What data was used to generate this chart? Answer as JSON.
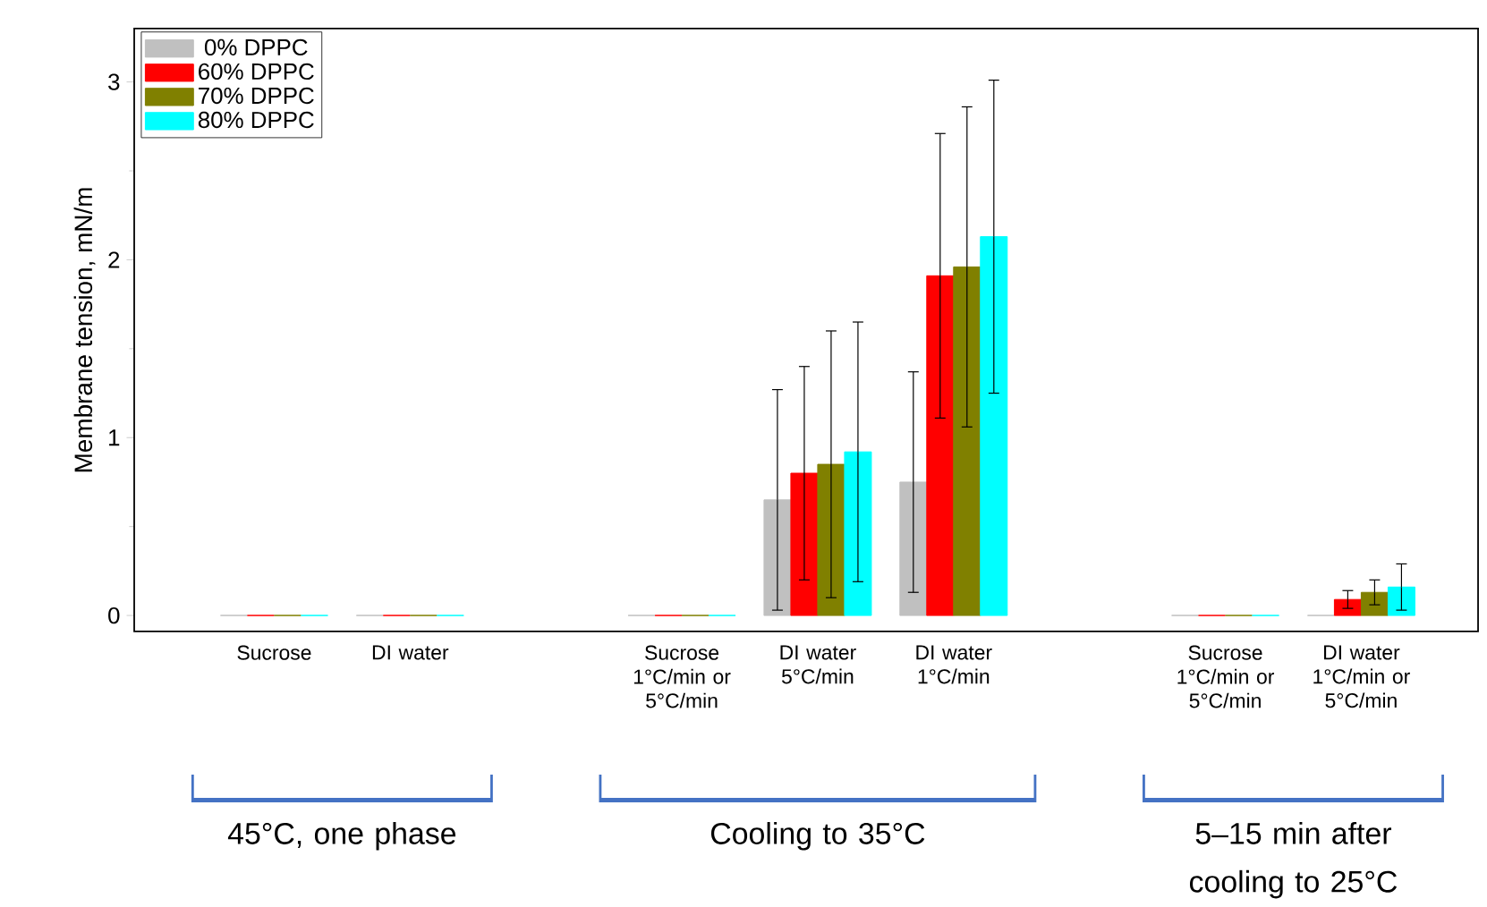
{
  "chart_data": {
    "type": "bar",
    "ylabel": "Membrane tension, mN/m",
    "categories": [
      "Sucrose",
      "DI water",
      null,
      "Sucrose 1°C/min or 5°C/min",
      "DI water 5°C/min",
      "DI water 1°C/min",
      null,
      "Sucrose 1°C/min or 5°C/min",
      "DI water 1°C/min or 5°C/min"
    ],
    "series": [
      {
        "name": "0% DPPC",
        "color": "#c0c0c0",
        "values": [
          0,
          0,
          null,
          0,
          0.65,
          0.75,
          null,
          0,
          0
        ],
        "errors": [
          null,
          null,
          null,
          null,
          0.62,
          0.62,
          null,
          null,
          null
        ]
      },
      {
        "name": "60% DPPC",
        "color": "#ff0000",
        "values": [
          0,
          0,
          null,
          0,
          0.8,
          1.91,
          null,
          0,
          0.09
        ],
        "errors": [
          null,
          null,
          null,
          null,
          0.6,
          0.8,
          null,
          null,
          0.05
        ]
      },
      {
        "name": "70% DPPC",
        "color": "#808000",
        "values": [
          0,
          0,
          null,
          0,
          0.85,
          1.96,
          null,
          0,
          0.13
        ],
        "errors": [
          null,
          null,
          null,
          null,
          0.75,
          0.9,
          null,
          null,
          0.07
        ]
      },
      {
        "name": "80% DPPC",
        "color": "#00ffff",
        "values": [
          0,
          0,
          null,
          0,
          0.92,
          2.13,
          null,
          0,
          0.16
        ],
        "errors": [
          null,
          null,
          null,
          null,
          0.73,
          0.88,
          null,
          null,
          0.13
        ]
      }
    ],
    "ylim": [
      -0.09,
      3.3
    ],
    "yticks": [
      0,
      1,
      2,
      3
    ],
    "legend": "top left",
    "grid": false,
    "annotations": [
      "45°C, one phase",
      "Cooling to 35°C",
      "5–15 min after cooling  to 25°C"
    ]
  }
}
